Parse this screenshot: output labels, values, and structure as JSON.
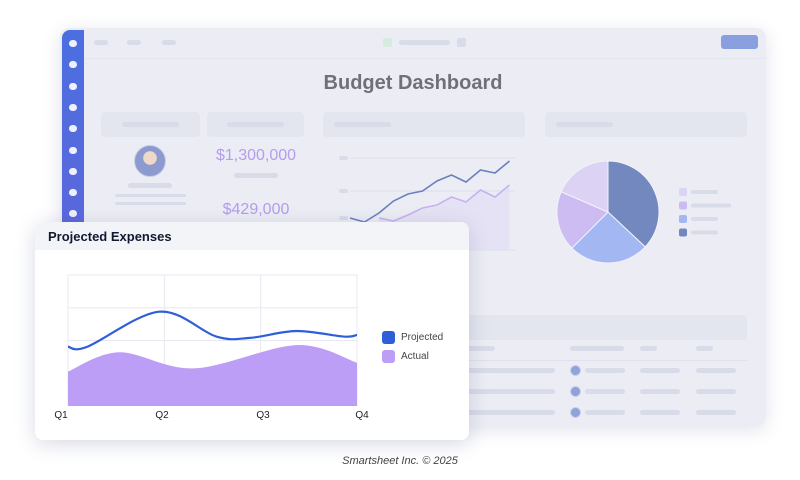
{
  "dashboard": {
    "title": "Budget Dashboard",
    "kpi_primary": "$1,300,000",
    "kpi_secondary": "$429,000",
    "colors": {
      "sidebar": "#4b6fe0",
      "kpi": "#b49cef",
      "top_button": "#8a9fe0"
    },
    "sidebar_icons": [
      "home-icon",
      "bell-icon",
      "search-icon",
      "chat-icon",
      "clock-icon",
      "contacts-icon",
      "star-icon",
      "settings-icon",
      "plus-icon"
    ],
    "background_line_chart": {
      "series": [
        {
          "color": "#6b80bf",
          "values": [
            3.2,
            2.8,
            3.7,
            4.9,
            5.6,
            5.9,
            6.9,
            7.5,
            6.8,
            8.0,
            7.7,
            8.9
          ]
        },
        {
          "color": "#c6b2f2",
          "values": [
            null,
            null,
            3.2,
            2.9,
            3.5,
            4.2,
            4.5,
            5.3,
            4.8,
            6.0,
            5.3,
            6.5
          ]
        }
      ]
    },
    "background_pie": {
      "slices": [
        {
          "value": 0.37,
          "color": "#7488c0"
        },
        {
          "value": 0.255,
          "color": "#a3b7f2"
        },
        {
          "value": 0.19,
          "color": "#cdbcf2"
        },
        {
          "value": 0.185,
          "color": "#dcd3f4"
        }
      ]
    }
  },
  "overlay": {
    "title": "Projected Expenses"
  },
  "chart_data": {
    "type": "line",
    "title": "Projected Expenses",
    "categories": [
      "Q1",
      "Q2",
      "Q3",
      "Q4"
    ],
    "xlim": [
      1,
      4
    ],
    "ylim": [
      0,
      4
    ],
    "grid": true,
    "legend": "right",
    "series": [
      {
        "name": "Projected",
        "style": "line",
        "color": "#2e5fd8",
        "x": [
          1,
          1.2,
          1.95,
          2.54,
          2.89,
          3.37,
          3.86,
          4
        ],
        "y": [
          1.81,
          1.81,
          2.88,
          2.12,
          2.08,
          2.29,
          2.12,
          2.17
        ]
      },
      {
        "name": "Actual",
        "style": "area",
        "color": "#bd9ef6",
        "x": [
          1,
          1.53,
          2.31,
          3.37,
          4
        ],
        "y": [
          1.05,
          1.64,
          1.15,
          1.86,
          1.32
        ]
      }
    ]
  },
  "footer": "Smartsheet Inc. © 2025"
}
